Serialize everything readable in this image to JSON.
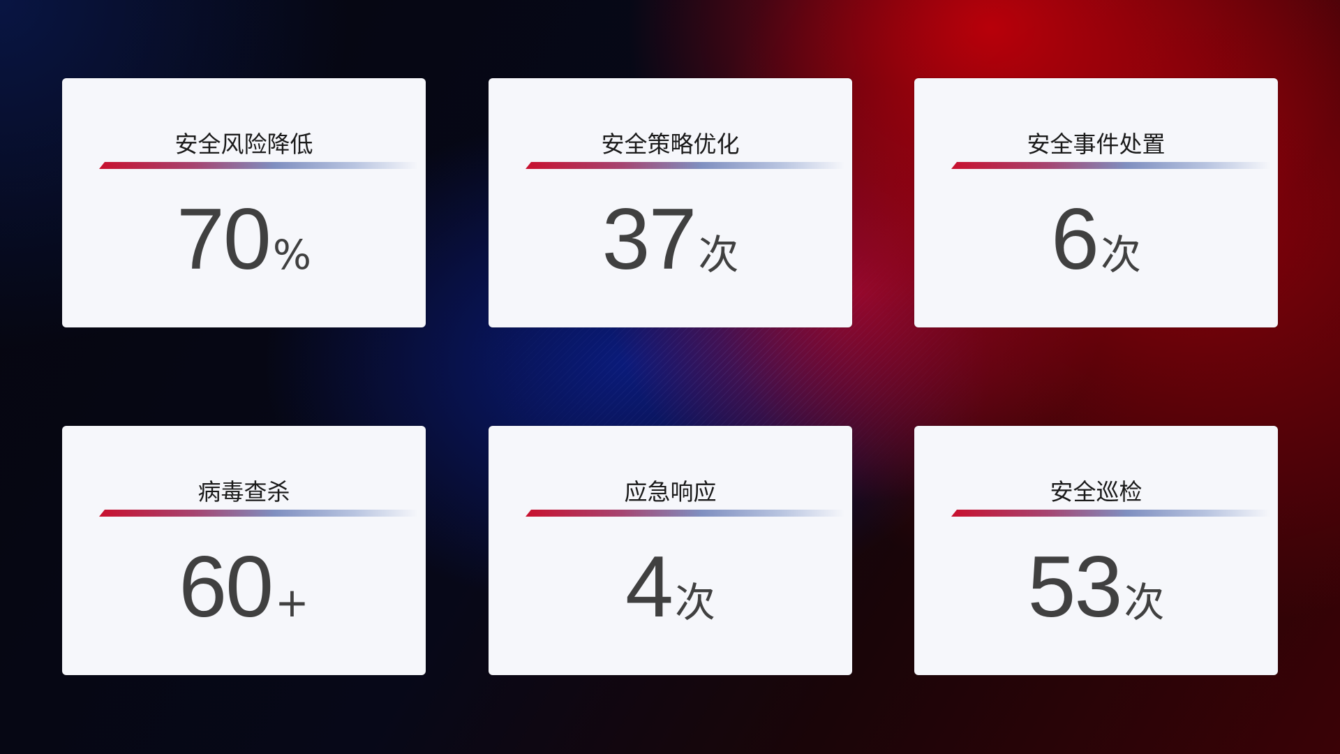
{
  "cards": [
    {
      "title": "安全风险降低",
      "value": "70",
      "unit": "%"
    },
    {
      "title": "安全策略优化",
      "value": "37",
      "unit": "次"
    },
    {
      "title": "安全事件处置",
      "value": "6",
      "unit": "次"
    },
    {
      "title": "病毒查杀",
      "value": "60",
      "unit": "+"
    },
    {
      "title": "应急响应",
      "value": "4",
      "unit": "次"
    },
    {
      "title": "安全巡检",
      "value": "53",
      "unit": "次"
    }
  ],
  "colors": {
    "accent_red": "#c8102e",
    "accent_blue": "#7f8fc0",
    "card_bg": "#f6f7fb",
    "value_text": "#404040"
  }
}
